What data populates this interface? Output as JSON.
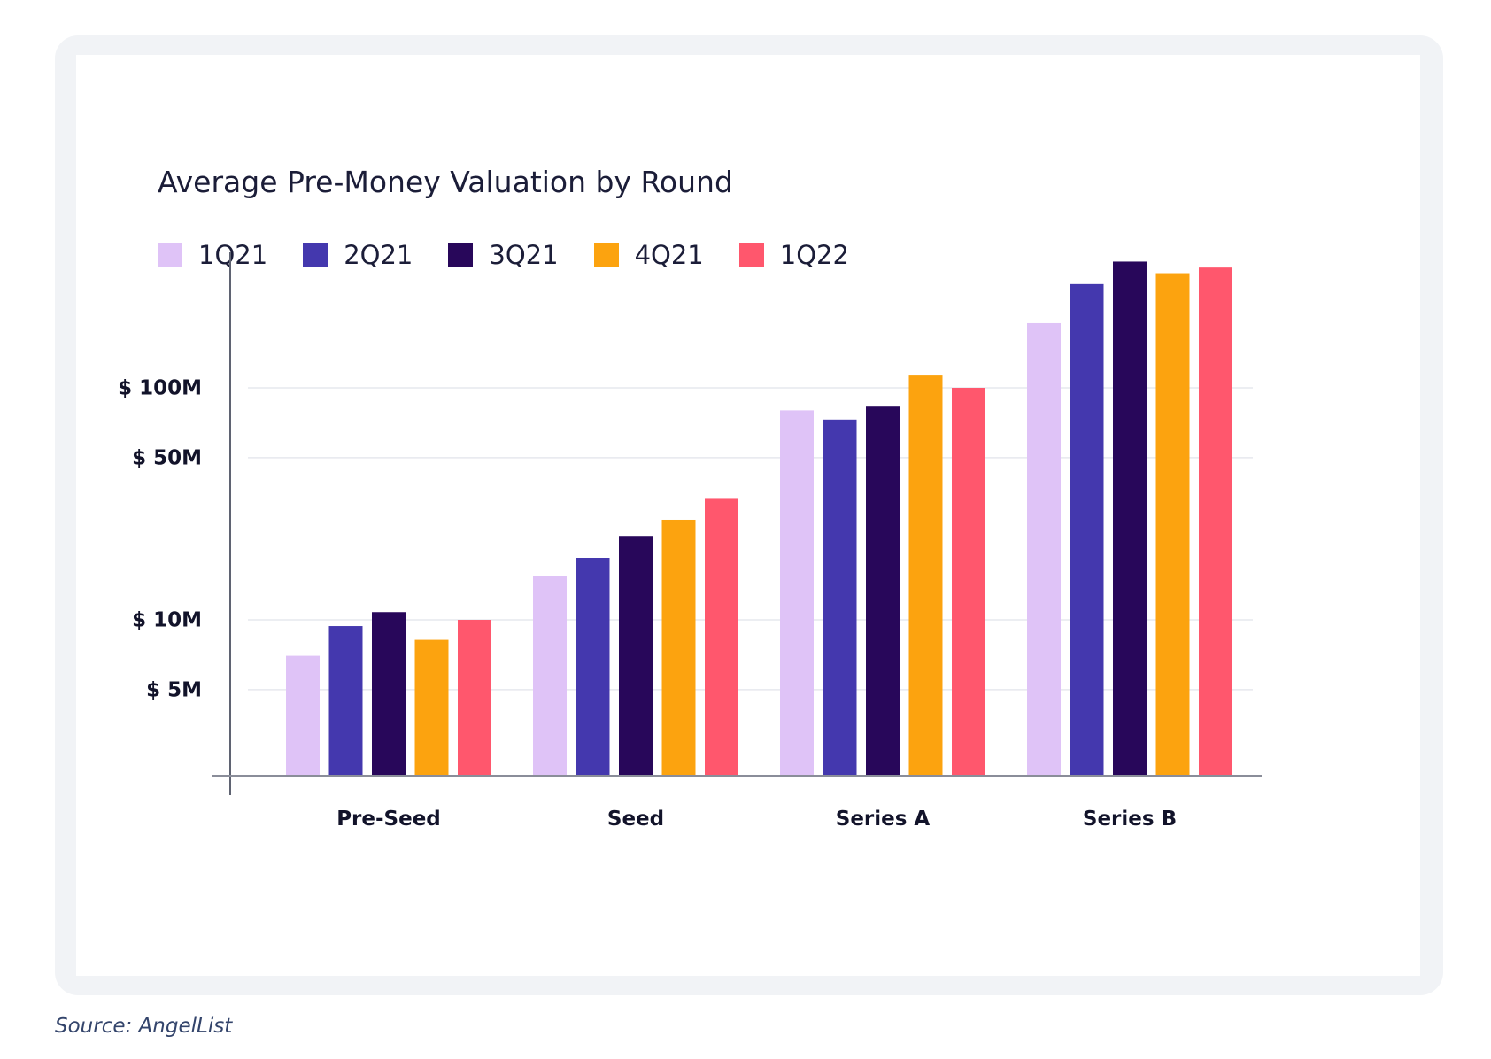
{
  "figure": {
    "source": "Source: AngelList"
  },
  "chart_data": {
    "type": "bar",
    "title": "Average Pre-Money Valuation by Round",
    "xlabel": "",
    "ylabel": "",
    "categories": [
      "Pre-Seed",
      "Seed",
      "Series A",
      "Series B"
    ],
    "y_ticks": [
      {
        "label": "$ 5M",
        "value": 5
      },
      {
        "label": "$ 10M",
        "value": 10
      },
      {
        "label": "$ 50M",
        "value": 50
      },
      {
        "label": "$ 100M",
        "value": 100
      }
    ],
    "y_scale": "log",
    "legend_position": "top-left",
    "grid": true,
    "unit": "$M",
    "series": [
      {
        "name": "1Q21",
        "color": "#dfc3f7",
        "values": [
          7.0,
          15.5,
          80,
          190
        ]
      },
      {
        "name": "2Q21",
        "color": "#4438ae",
        "values": [
          9.4,
          18.5,
          73,
          280
        ]
      },
      {
        "name": "3Q21",
        "color": "#28075a",
        "values": [
          10.8,
          23.0,
          83,
          350
        ]
      },
      {
        "name": "4Q21",
        "color": "#fca30f",
        "values": [
          8.2,
          27.0,
          113,
          312
        ]
      },
      {
        "name": "1Q22",
        "color": "#ff576d",
        "values": [
          10.0,
          33.5,
          100,
          330
        ]
      }
    ]
  }
}
